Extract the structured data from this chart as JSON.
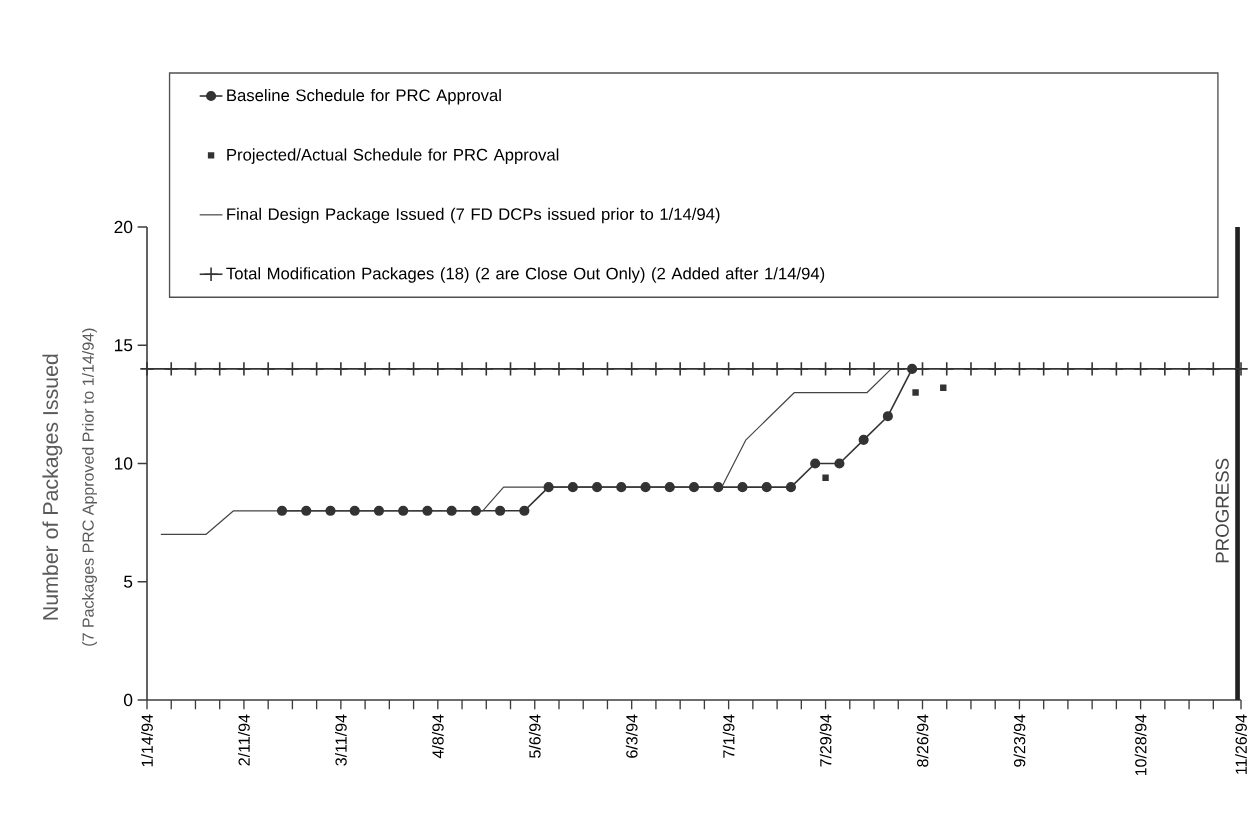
{
  "chart_data": {
    "type": "line",
    "ylabel": "Number of Packages Issued",
    "annotations": [
      "(7 Packages PRC Approved Prior to 1/14/94)"
    ],
    "xlim": [
      "1994-01-14",
      "1994-11-26"
    ],
    "ylim": [
      0,
      20
    ],
    "yticks": [
      0,
      5,
      10,
      15,
      20
    ],
    "xticks": [
      {
        "value": "1994-01-14",
        "label": "1/14/94"
      },
      {
        "value": "1994-01-21",
        "label": null
      },
      {
        "value": "1994-01-28",
        "label": null
      },
      {
        "value": "1994-02-04",
        "label": null
      },
      {
        "value": "1994-02-11",
        "label": "2/11/94"
      },
      {
        "value": "1994-02-18",
        "label": null
      },
      {
        "value": "1994-02-25",
        "label": null
      },
      {
        "value": "1994-03-04",
        "label": null
      },
      {
        "value": "1994-03-11",
        "label": "3/11/94"
      },
      {
        "value": "1994-03-18",
        "label": null
      },
      {
        "value": "1994-03-25",
        "label": null
      },
      {
        "value": "1994-04-01",
        "label": null
      },
      {
        "value": "1994-04-08",
        "label": "4/8/94"
      },
      {
        "value": "1994-04-15",
        "label": null
      },
      {
        "value": "1994-04-22",
        "label": null
      },
      {
        "value": "1994-04-29",
        "label": null
      },
      {
        "value": "1994-05-06",
        "label": "5/6/94"
      },
      {
        "value": "1994-05-13",
        "label": null
      },
      {
        "value": "1994-05-20",
        "label": null
      },
      {
        "value": "1994-05-27",
        "label": null
      },
      {
        "value": "1994-06-03",
        "label": "6/3/94"
      },
      {
        "value": "1994-06-10",
        "label": null
      },
      {
        "value": "1994-06-17",
        "label": null
      },
      {
        "value": "1994-06-24",
        "label": null
      },
      {
        "value": "1994-07-01",
        "label": "7/1/94"
      },
      {
        "value": "1994-07-08",
        "label": null
      },
      {
        "value": "1994-07-15",
        "label": null
      },
      {
        "value": "1994-07-22",
        "label": null
      },
      {
        "value": "1994-07-29",
        "label": "7/29/94"
      },
      {
        "value": "1994-08-05",
        "label": null
      },
      {
        "value": "1994-08-12",
        "label": null
      },
      {
        "value": "1994-08-19",
        "label": null
      },
      {
        "value": "1994-08-26",
        "label": "8/26/94"
      },
      {
        "value": "1994-09-02",
        "label": null
      },
      {
        "value": "1994-09-09",
        "label": null
      },
      {
        "value": "1994-09-16",
        "label": null
      },
      {
        "value": "1994-09-23",
        "label": "9/23/94"
      },
      {
        "value": "1994-09-30",
        "label": null
      },
      {
        "value": "1994-10-07",
        "label": null
      },
      {
        "value": "1994-10-14",
        "label": null
      },
      {
        "value": "1994-10-21",
        "label": null
      },
      {
        "value": "1994-10-28",
        "label": "10/28/94"
      },
      {
        "value": "1994-11-04",
        "label": null
      },
      {
        "value": "1994-11-11",
        "label": null
      },
      {
        "value": "1994-11-18",
        "label": null
      },
      {
        "value": "1994-11-26",
        "label": "11/26/94"
      }
    ],
    "legend": "top",
    "ref_lines": [
      {
        "axis": "x",
        "value": "1994-11-25",
        "label": "PROGRESS",
        "color": "#222222"
      }
    ],
    "series": [
      {
        "name": "Baseline Schedule for PRC Approval",
        "marker": "circle",
        "line_style": "solid",
        "color": "#333333",
        "x": [
          "1994-02-22",
          "1994-03-01",
          "1994-03-08",
          "1994-03-15",
          "1994-03-22",
          "1994-03-29",
          "1994-04-05",
          "1994-04-12",
          "1994-04-19",
          "1994-04-26",
          "1994-05-03",
          "1994-05-10",
          "1994-05-17",
          "1994-05-24",
          "1994-05-31",
          "1994-06-07",
          "1994-06-14",
          "1994-06-21",
          "1994-06-28",
          "1994-07-05",
          "1994-07-12",
          "1994-07-19",
          "1994-07-26",
          "1994-08-02",
          "1994-08-09",
          "1994-08-16",
          "1994-08-23"
        ],
        "values": [
          8,
          8,
          8,
          8,
          8,
          8,
          8,
          8,
          8,
          8,
          8,
          9,
          9,
          9,
          9,
          9,
          9,
          9,
          9,
          9,
          9,
          9,
          10,
          10,
          11,
          12,
          14
        ]
      },
      {
        "name": "Projected/Actual Schedule for PRC Approval",
        "type": "scatter",
        "marker": "square",
        "color": "#333333",
        "x": [
          "1994-07-29",
          "1994-08-24",
          "1994-09-01"
        ],
        "values": [
          9.4,
          13.0,
          13.2
        ]
      },
      {
        "name": "Final Design Package Issued (7 FD DCPs issued prior to 1/14/94)",
        "marker": "none",
        "line_style": "solid",
        "color": "#444444",
        "x": [
          "1994-01-18",
          "1994-01-31",
          "1994-02-08",
          "1994-04-21",
          "1994-04-27",
          "1994-06-29",
          "1994-07-06",
          "1994-07-20",
          "1994-08-10",
          "1994-08-17"
        ],
        "values": [
          7,
          7,
          8,
          8,
          9,
          9,
          11,
          13,
          13,
          14
        ]
      },
      {
        "name": "Total Modification Packages (18) (2 are Close Out Only) (2 Added after 1/14/94)",
        "marker": "cross",
        "line_style": "solid",
        "color": "#333333",
        "x": [
          "1994-01-14",
          "1994-01-21",
          "1994-01-28",
          "1994-02-04",
          "1994-02-11",
          "1994-02-18",
          "1994-02-25",
          "1994-03-04",
          "1994-03-11",
          "1994-03-18",
          "1994-03-25",
          "1994-04-01",
          "1994-04-08",
          "1994-04-15",
          "1994-04-22",
          "1994-04-29",
          "1994-05-06",
          "1994-05-13",
          "1994-05-20",
          "1994-05-27",
          "1994-06-03",
          "1994-06-10",
          "1994-06-17",
          "1994-06-24",
          "1994-07-01",
          "1994-07-08",
          "1994-07-15",
          "1994-07-22",
          "1994-07-29",
          "1994-08-05",
          "1994-08-12",
          "1994-08-19",
          "1994-08-26",
          "1994-09-02",
          "1994-09-09",
          "1994-09-16",
          "1994-09-23",
          "1994-09-30",
          "1994-10-07",
          "1994-10-14",
          "1994-10-21",
          "1994-10-28",
          "1994-11-04",
          "1994-11-11",
          "1994-11-18",
          "1994-11-26"
        ],
        "values": [
          14,
          14,
          14,
          14,
          14,
          14,
          14,
          14,
          14,
          14,
          14,
          14,
          14,
          14,
          14,
          14,
          14,
          14,
          14,
          14,
          14,
          14,
          14,
          14,
          14,
          14,
          14,
          14,
          14,
          14,
          14,
          14,
          14,
          14,
          14,
          14,
          14,
          14,
          14,
          14,
          14,
          14,
          14,
          14,
          14,
          14
        ]
      }
    ]
  }
}
